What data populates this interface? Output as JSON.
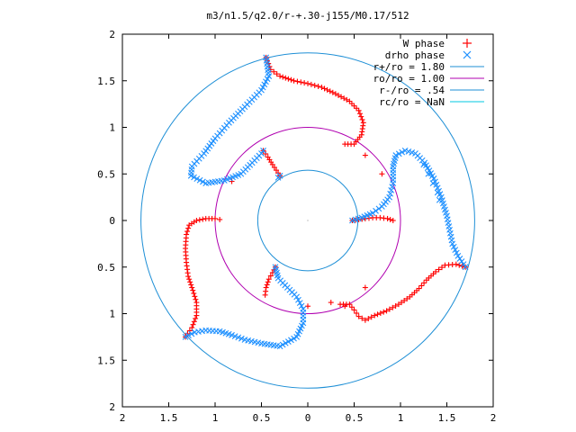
{
  "chart_data": {
    "type": "scatter",
    "title": "m3/n1.5/q2.0/r-+.30-j155/M0.17/512",
    "xlabel": "",
    "ylabel": "",
    "xlim": [
      -2,
      2
    ],
    "ylim": [
      -2,
      2
    ],
    "x_ticks": [
      "2",
      "1.5",
      "1",
      "0.5",
      "0",
      "0.5",
      "1",
      "1.5",
      "2"
    ],
    "y_ticks": [
      "2",
      "1.5",
      "1",
      "0.5",
      "0",
      "0.5",
      "1",
      "1.5",
      "2"
    ],
    "grid": false,
    "legend_position": "top-right",
    "series": [
      {
        "name": "W phase",
        "marker": "plus",
        "color": "#ff0000",
        "arms": [
          [
            [
              -0.45,
              1.75
            ],
            [
              -0.4,
              1.62
            ],
            [
              -0.3,
              1.55
            ],
            [
              -0.15,
              1.5
            ],
            [
              0.0,
              1.47
            ],
            [
              0.15,
              1.43
            ],
            [
              0.3,
              1.36
            ],
            [
              0.45,
              1.28
            ],
            [
              0.55,
              1.18
            ],
            [
              0.6,
              1.05
            ],
            [
              0.58,
              0.92
            ],
            [
              0.5,
              0.82
            ],
            [
              0.4,
              0.82
            ]
          ],
          [
            [
              0.48,
              0.0
            ],
            [
              0.55,
              0.01
            ],
            [
              0.62,
              0.02
            ],
            [
              0.7,
              0.03
            ],
            [
              0.78,
              0.03
            ],
            [
              0.86,
              0.02
            ],
            [
              0.92,
              0.0
            ]
          ],
          [
            [
              1.7,
              -0.5
            ],
            [
              1.6,
              -0.47
            ],
            [
              1.48,
              -0.48
            ],
            [
              1.38,
              -0.55
            ],
            [
              1.28,
              -0.64
            ],
            [
              1.2,
              -0.73
            ],
            [
              1.1,
              -0.82
            ],
            [
              0.98,
              -0.9
            ],
            [
              0.85,
              -0.97
            ],
            [
              0.72,
              -1.02
            ],
            [
              0.62,
              -1.07
            ],
            [
              0.55,
              -1.03
            ],
            [
              0.5,
              -0.96
            ],
            [
              0.45,
              -0.9
            ],
            [
              0.35,
              -0.9
            ]
          ],
          [
            [
              -0.35,
              -0.5
            ],
            [
              -0.38,
              -0.56
            ],
            [
              -0.42,
              -0.63
            ],
            [
              -0.45,
              -0.72
            ],
            [
              -0.46,
              -0.8
            ]
          ],
          [
            [
              -1.32,
              -1.25
            ],
            [
              -1.25,
              -1.15
            ],
            [
              -1.2,
              -1.02
            ],
            [
              -1.2,
              -0.88
            ],
            [
              -1.24,
              -0.75
            ],
            [
              -1.29,
              -0.6
            ],
            [
              -1.31,
              -0.45
            ],
            [
              -1.32,
              -0.3
            ],
            [
              -1.31,
              -0.15
            ],
            [
              -1.28,
              -0.05
            ],
            [
              -1.2,
              0.0
            ],
            [
              -1.1,
              0.02
            ],
            [
              -1.0,
              0.02
            ],
            [
              -0.95,
              0.01
            ]
          ],
          [
            [
              -0.3,
              0.48
            ],
            [
              -0.34,
              0.54
            ],
            [
              -0.38,
              0.6
            ],
            [
              -0.43,
              0.68
            ],
            [
              -0.48,
              0.75
            ]
          ]
        ],
        "stray": [
          [
            0.4,
            -0.92
          ],
          [
            0.62,
            -0.72
          ],
          [
            0.8,
            0.5
          ],
          [
            0.62,
            0.7
          ],
          [
            -0.82,
            0.42
          ],
          [
            0.0,
            -0.92
          ],
          [
            0.25,
            -0.88
          ]
        ]
      },
      {
        "name": "drho phase",
        "marker": "cross",
        "color": "#1e90ff",
        "arms": [
          [
            [
              -0.45,
              1.75
            ],
            [
              -0.42,
              1.55
            ],
            [
              -0.5,
              1.4
            ],
            [
              -0.68,
              1.22
            ],
            [
              -0.85,
              1.05
            ],
            [
              -1.0,
              0.88
            ],
            [
              -1.12,
              0.72
            ],
            [
              -1.25,
              0.58
            ],
            [
              -1.26,
              0.48
            ],
            [
              -1.1,
              0.4
            ],
            [
              -0.9,
              0.43
            ],
            [
              -0.72,
              0.5
            ],
            [
              -0.6,
              0.62
            ],
            [
              -0.5,
              0.72
            ],
            [
              -0.48,
              0.75
            ]
          ],
          [
            [
              -0.3,
              0.48
            ],
            [
              -0.32,
              0.46
            ]
          ],
          [
            [
              0.48,
              0.0
            ],
            [
              0.58,
              0.03
            ],
            [
              0.7,
              0.08
            ],
            [
              0.8,
              0.15
            ],
            [
              0.88,
              0.25
            ],
            [
              0.92,
              0.4
            ],
            [
              0.92,
              0.58
            ],
            [
              0.95,
              0.7
            ],
            [
              1.05,
              0.75
            ],
            [
              1.16,
              0.72
            ],
            [
              1.26,
              0.62
            ],
            [
              1.36,
              0.45
            ],
            [
              1.44,
              0.25
            ],
            [
              1.5,
              0.05
            ],
            [
              1.53,
              -0.1
            ],
            [
              1.56,
              -0.25
            ],
            [
              1.62,
              -0.38
            ],
            [
              1.7,
              -0.5
            ]
          ],
          [
            [
              -0.35,
              -0.5
            ],
            [
              -0.32,
              -0.62
            ],
            [
              -0.22,
              -0.72
            ],
            [
              -0.12,
              -0.82
            ],
            [
              -0.05,
              -0.95
            ],
            [
              -0.05,
              -1.1
            ],
            [
              -0.12,
              -1.25
            ],
            [
              -0.3,
              -1.35
            ],
            [
              -0.5,
              -1.32
            ],
            [
              -0.68,
              -1.28
            ],
            [
              -0.82,
              -1.23
            ],
            [
              -0.95,
              -1.19
            ],
            [
              -1.1,
              -1.18
            ],
            [
              -1.22,
              -1.2
            ],
            [
              -1.32,
              -1.25
            ]
          ]
        ],
        "stray": [
          [
            1.25,
            0.6
          ],
          [
            1.3,
            0.5
          ],
          [
            1.35,
            0.4
          ],
          [
            1.4,
            0.3
          ],
          [
            1.42,
            0.22
          ]
        ]
      }
    ],
    "circles": [
      {
        "label": "r+/ro = 1.80",
        "radius": 1.8,
        "color": "#1e8fd6"
      },
      {
        "label": "ro/ro = 1.00",
        "radius": 1.0,
        "color": "#b000b0"
      },
      {
        "label": "r-/ro = .54",
        "radius": 0.54,
        "color": "#1e8fd6"
      },
      {
        "label": "rc/ro = NaN",
        "radius": null,
        "color": "#00c8e0"
      }
    ]
  }
}
